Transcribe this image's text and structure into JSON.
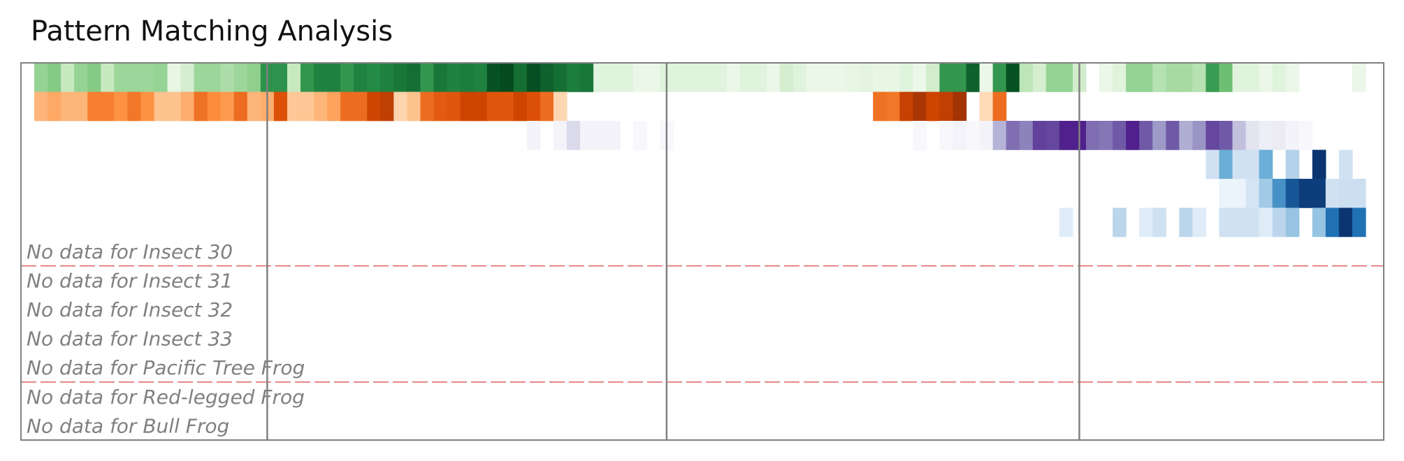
{
  "chart_data": {
    "type": "heatmap",
    "title": "Pattern Matching Analysis",
    "n_columns": 101,
    "grid": false,
    "series": [
      {
        "name": "",
        "colormap": "Greens",
        "cells": [
          [
            0,
            0.4
          ],
          [
            1,
            0.45
          ],
          [
            2,
            0.25
          ],
          [
            3,
            0.4
          ],
          [
            4,
            0.45
          ],
          [
            5,
            0.25
          ],
          [
            6,
            0.38
          ],
          [
            7,
            0.38
          ],
          [
            8,
            0.38
          ],
          [
            9,
            0.4
          ],
          [
            10,
            0.08
          ],
          [
            11,
            0.18
          ],
          [
            12,
            0.38
          ],
          [
            13,
            0.38
          ],
          [
            14,
            0.33
          ],
          [
            15,
            0.38
          ],
          [
            16,
            0.42
          ],
          [
            17,
            0.72
          ],
          [
            18,
            0.72
          ],
          [
            19,
            0.25
          ],
          [
            20,
            0.7
          ],
          [
            21,
            0.78
          ],
          [
            22,
            0.78
          ],
          [
            23,
            0.7
          ],
          [
            24,
            0.78
          ],
          [
            25,
            0.75
          ],
          [
            26,
            0.78
          ],
          [
            27,
            0.82
          ],
          [
            28,
            0.85
          ],
          [
            29,
            0.7
          ],
          [
            30,
            0.82
          ],
          [
            31,
            0.78
          ],
          [
            32,
            0.8
          ],
          [
            33,
            0.78
          ],
          [
            34,
            0.95
          ],
          [
            35,
            0.98
          ],
          [
            36,
            0.85
          ],
          [
            37,
            0.96
          ],
          [
            38,
            0.9
          ],
          [
            39,
            0.85
          ],
          [
            40,
            0.8
          ],
          [
            41,
            0.82
          ],
          [
            42,
            0.12
          ],
          [
            43,
            0.12
          ],
          [
            44,
            0.12
          ],
          [
            45,
            0.06
          ],
          [
            46,
            0.06
          ],
          [
            47,
            0.12
          ],
          [
            48,
            0.12
          ],
          [
            49,
            0.12
          ],
          [
            50,
            0.12
          ],
          [
            51,
            0.12
          ],
          [
            52,
            0.06
          ],
          [
            53,
            0.12
          ],
          [
            54,
            0.12
          ],
          [
            55,
            0.06
          ],
          [
            56,
            0.18
          ],
          [
            57,
            0.12
          ],
          [
            58,
            0.06
          ],
          [
            59,
            0.06
          ],
          [
            60,
            0.06
          ],
          [
            61,
            0.08
          ],
          [
            62,
            0.1
          ],
          [
            63,
            0.08
          ],
          [
            64,
            0.08
          ],
          [
            65,
            0.12
          ],
          [
            66,
            0.06
          ],
          [
            67,
            0.2
          ],
          [
            68,
            0.7
          ],
          [
            69,
            0.7
          ],
          [
            70,
            0.9
          ],
          [
            71,
            0.06
          ],
          [
            72,
            0.7
          ],
          [
            73,
            0.95
          ],
          [
            74,
            0.28
          ],
          [
            75,
            0.18
          ],
          [
            76,
            0.4
          ],
          [
            77,
            0.4
          ],
          [
            78,
            0.2
          ],
          [
            80,
            0.06
          ],
          [
            81,
            0.12
          ],
          [
            82,
            0.4
          ],
          [
            83,
            0.4
          ],
          [
            84,
            0.3
          ],
          [
            85,
            0.35
          ],
          [
            86,
            0.35
          ],
          [
            87,
            0.3
          ],
          [
            88,
            0.68
          ],
          [
            89,
            0.52
          ],
          [
            90,
            0.12
          ],
          [
            91,
            0.12
          ],
          [
            92,
            0.06
          ],
          [
            93,
            0.12
          ],
          [
            94,
            0.06
          ],
          [
            99,
            0.06
          ]
        ]
      },
      {
        "name": "",
        "colormap": "Oranges",
        "cells": [
          [
            0,
            0.35
          ],
          [
            1,
            0.4
          ],
          [
            2,
            0.35
          ],
          [
            3,
            0.35
          ],
          [
            4,
            0.55
          ],
          [
            5,
            0.55
          ],
          [
            6,
            0.48
          ],
          [
            7,
            0.58
          ],
          [
            8,
            0.48
          ],
          [
            9,
            0.3
          ],
          [
            10,
            0.3
          ],
          [
            11,
            0.38
          ],
          [
            12,
            0.6
          ],
          [
            13,
            0.5
          ],
          [
            14,
            0.45
          ],
          [
            15,
            0.62
          ],
          [
            16,
            0.35
          ],
          [
            17,
            0.38
          ],
          [
            18,
            0.72
          ],
          [
            19,
            0.28
          ],
          [
            20,
            0.28
          ],
          [
            21,
            0.35
          ],
          [
            22,
            0.42
          ],
          [
            23,
            0.62
          ],
          [
            24,
            0.62
          ],
          [
            25,
            0.78
          ],
          [
            26,
            0.82
          ],
          [
            27,
            0.22
          ],
          [
            28,
            0.3
          ],
          [
            29,
            0.62
          ],
          [
            30,
            0.68
          ],
          [
            31,
            0.7
          ],
          [
            32,
            0.78
          ],
          [
            33,
            0.78
          ],
          [
            34,
            0.7
          ],
          [
            35,
            0.7
          ],
          [
            36,
            0.78
          ],
          [
            37,
            0.72
          ],
          [
            38,
            0.62
          ],
          [
            39,
            0.2
          ],
          [
            63,
            0.6
          ],
          [
            64,
            0.58
          ],
          [
            65,
            0.8
          ],
          [
            66,
            0.88
          ],
          [
            67,
            0.78
          ],
          [
            68,
            0.82
          ],
          [
            69,
            0.9
          ],
          [
            71,
            0.18
          ],
          [
            72,
            0.62
          ]
        ]
      },
      {
        "name": "",
        "colormap": "Purples",
        "cells": [
          [
            37,
            0.06
          ],
          [
            39,
            0.06
          ],
          [
            40,
            0.25
          ],
          [
            41,
            0.06
          ],
          [
            42,
            0.06
          ],
          [
            43,
            0.06
          ],
          [
            45,
            0.03
          ],
          [
            47,
            0.03
          ],
          [
            66,
            0.03
          ],
          [
            68,
            0.03
          ],
          [
            69,
            0.06
          ],
          [
            70,
            0.03
          ],
          [
            71,
            0.06
          ],
          [
            72,
            0.4
          ],
          [
            73,
            0.65
          ],
          [
            74,
            0.58
          ],
          [
            75,
            0.8
          ],
          [
            76,
            0.78
          ],
          [
            77,
            0.9
          ],
          [
            78,
            0.9
          ],
          [
            79,
            0.65
          ],
          [
            80,
            0.62
          ],
          [
            81,
            0.72
          ],
          [
            82,
            0.9
          ],
          [
            83,
            0.72
          ],
          [
            84,
            0.5
          ],
          [
            85,
            0.72
          ],
          [
            86,
            0.42
          ],
          [
            87,
            0.52
          ],
          [
            88,
            0.78
          ],
          [
            89,
            0.72
          ],
          [
            90,
            0.35
          ],
          [
            91,
            0.18
          ],
          [
            92,
            0.1
          ],
          [
            93,
            0.12
          ],
          [
            94,
            0.06
          ],
          [
            95,
            0.03
          ]
        ]
      },
      {
        "name": "",
        "colormap": "Blues",
        "cells": [
          [
            88,
            0.2
          ],
          [
            89,
            0.5
          ],
          [
            90,
            0.2
          ],
          [
            91,
            0.2
          ],
          [
            92,
            0.5
          ],
          [
            94,
            0.3
          ],
          [
            96,
            0.98
          ],
          [
            98,
            0.2
          ]
        ]
      },
      {
        "name": "",
        "colormap": "Blues",
        "cells": [
          [
            89,
            0.06
          ],
          [
            90,
            0.06
          ],
          [
            91,
            0.18
          ],
          [
            92,
            0.35
          ],
          [
            93,
            0.62
          ],
          [
            94,
            0.85
          ],
          [
            95,
            0.95
          ],
          [
            96,
            0.95
          ],
          [
            97,
            0.2
          ],
          [
            98,
            0.22
          ],
          [
            99,
            0.22
          ]
        ]
      },
      {
        "name": "",
        "colormap": "Blues",
        "cells": [
          [
            77,
            0.12
          ],
          [
            81,
            0.28
          ],
          [
            83,
            0.12
          ],
          [
            84,
            0.2
          ],
          [
            86,
            0.28
          ],
          [
            87,
            0.12
          ],
          [
            89,
            0.2
          ],
          [
            90,
            0.2
          ],
          [
            91,
            0.2
          ],
          [
            92,
            0.12
          ],
          [
            93,
            0.28
          ],
          [
            94,
            0.38
          ],
          [
            96,
            0.38
          ],
          [
            97,
            0.75
          ],
          [
            98,
            0.98
          ],
          [
            99,
            0.75
          ]
        ]
      }
    ],
    "empty_rows": [
      "No data for Insect 30",
      "No data for Insect 31",
      "No data for Insect 32",
      "No data for Insect 33",
      "No data for Pacific Tree Frog",
      "No data for Red-legged Frog",
      "No data for Bull Frog"
    ],
    "group_separators_after_row": [
      6,
      10
    ],
    "column_dividers": [
      17.5,
      47.5,
      78.5
    ],
    "colors": {
      "separator": "#e06060",
      "divider": "#808080",
      "frame": "#808080",
      "empty_text": "#808080"
    }
  }
}
